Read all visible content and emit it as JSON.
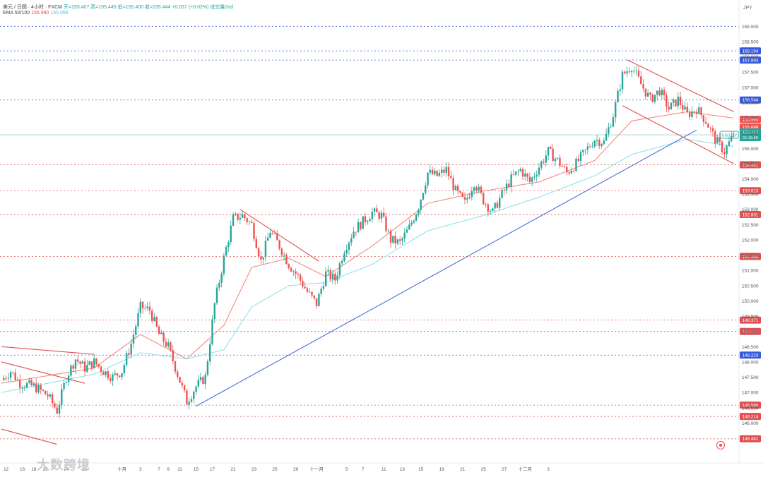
{
  "header": {
    "symbol_line": "美元 / 日圆 · 4小时 · FXCM",
    "ohlc": "开=155.407 高=155.445 低=155.400 收=155.444 +0.037 (+0.02%) 成交量2nd",
    "ma_label": "EMA 50/100",
    "ma1_value": "155.990",
    "ma2_value": "155.056"
  },
  "currency_label": "JPY",
  "watermark": "大数跨境",
  "colors": {
    "up": "#26a69a",
    "down": "#ef5350",
    "ema_fast": "#f28b82",
    "ema_slow": "#8ee4ea",
    "trendline": "#4a6fd6",
    "channel": "#e05050",
    "level_red": "#e05050",
    "level_blue": "#3a5bd9"
  },
  "chart_data": {
    "type": "candlestick",
    "title": "",
    "ylim": [
      145.2,
      159.4
    ],
    "y_ticks": [
      "159.000",
      "158.500",
      "158.000",
      "157.500",
      "157.000",
      "156.500",
      "156.000",
      "155.500",
      "155.000",
      "154.500",
      "154.000",
      "153.500",
      "153.000",
      "152.500",
      "152.000",
      "151.500",
      "151.000",
      "150.500",
      "150.000",
      "149.500",
      "149.000",
      "148.500",
      "148.000",
      "147.500",
      "147.000",
      "146.500",
      "146.000"
    ],
    "x_ticks": [
      "12",
      "16",
      "18",
      "20",
      "24",
      "26",
      "十月",
      "3",
      "7",
      "9",
      "11",
      "15",
      "17",
      "21",
      "23",
      "25",
      "29",
      "十一月",
      "5",
      "7",
      "11",
      "13",
      "15",
      "19",
      "21",
      "25",
      "27",
      "十二月",
      "3"
    ],
    "price_levels": [
      {
        "label": "158.194",
        "value": 158.194,
        "color": "blue"
      },
      {
        "label": "157.893",
        "value": 157.893,
        "color": "blue"
      },
      {
        "label": "156.584",
        "value": 156.584,
        "color": "blue"
      },
      {
        "label": "154.462",
        "value": 154.462,
        "color": "red"
      },
      {
        "label": "153.613",
        "value": 153.613,
        "color": "red"
      },
      {
        "label": "152.831",
        "value": 152.831,
        "color": "red"
      },
      {
        "label": "151.458",
        "value": 151.458,
        "color": "red"
      },
      {
        "label": "149.371",
        "value": 149.371,
        "color": "red"
      },
      {
        "label": "149.000",
        "value": 149.0,
        "color": "red"
      },
      {
        "label": "148.224",
        "value": 148.224,
        "color": "blue"
      },
      {
        "label": "146.585",
        "value": 146.585,
        "color": "red"
      },
      {
        "label": "146.214",
        "value": 146.214,
        "color": "red"
      },
      {
        "label": "145.481",
        "value": 145.481,
        "color": "red"
      }
    ],
    "current_price": {
      "symbol": "USDJPY",
      "price": "155.444",
      "countdown": "01:16:48"
    },
    "ema_badges": [
      {
        "label": "155.990",
        "color": "red"
      },
      {
        "label": "155.699",
        "color": "red"
      },
      {
        "label": "155.056",
        "color": "teal"
      }
    ],
    "anchors": [
      [
        0,
        147.4
      ],
      [
        4,
        147.7
      ],
      [
        8,
        147.3
      ],
      [
        14,
        147.2
      ],
      [
        20,
        146.9
      ],
      [
        24,
        146.4
      ],
      [
        28,
        147.5
      ],
      [
        32,
        148.1
      ],
      [
        36,
        147.8
      ],
      [
        40,
        148.0
      ],
      [
        44,
        147.7
      ],
      [
        48,
        147.5
      ],
      [
        52,
        147.7
      ],
      [
        56,
        148.6
      ],
      [
        60,
        149.8
      ],
      [
        64,
        149.7
      ],
      [
        68,
        148.9
      ],
      [
        72,
        148.5
      ],
      [
        76,
        147.6
      ],
      [
        80,
        146.7
      ],
      [
        84,
        147.2
      ],
      [
        88,
        147.5
      ],
      [
        92,
        149.9
      ],
      [
        96,
        151.4
      ],
      [
        100,
        152.7
      ],
      [
        104,
        152.8
      ],
      [
        108,
        152.5
      ],
      [
        112,
        151.3
      ],
      [
        116,
        152.3
      ],
      [
        120,
        151.8
      ],
      [
        124,
        151.2
      ],
      [
        128,
        150.8
      ],
      [
        132,
        150.3
      ],
      [
        136,
        149.9
      ],
      [
        140,
        150.9
      ],
      [
        144,
        150.7
      ],
      [
        148,
        151.7
      ],
      [
        152,
        152.3
      ],
      [
        156,
        152.6
      ],
      [
        160,
        152.9
      ],
      [
        164,
        152.8
      ],
      [
        168,
        152.0
      ],
      [
        172,
        151.9
      ],
      [
        176,
        152.4
      ],
      [
        180,
        153.1
      ],
      [
        184,
        154.2
      ],
      [
        188,
        154.1
      ],
      [
        192,
        154.3
      ],
      [
        196,
        153.6
      ],
      [
        200,
        153.2
      ],
      [
        204,
        153.9
      ],
      [
        208,
        153.3
      ],
      [
        212,
        152.9
      ],
      [
        216,
        153.5
      ],
      [
        220,
        154.0
      ],
      [
        224,
        154.3
      ],
      [
        228,
        153.9
      ],
      [
        232,
        154.4
      ],
      [
        236,
        154.9
      ],
      [
        240,
        154.6
      ],
      [
        244,
        154.2
      ],
      [
        248,
        154.5
      ],
      [
        252,
        154.9
      ],
      [
        256,
        155.3
      ],
      [
        260,
        155.2
      ],
      [
        264,
        156.1
      ],
      [
        268,
        157.4
      ],
      [
        272,
        157.7
      ],
      [
        276,
        157.1
      ],
      [
        280,
        156.6
      ],
      [
        284,
        156.9
      ],
      [
        288,
        156.3
      ],
      [
        292,
        156.6
      ],
      [
        296,
        156.1
      ],
      [
        300,
        156.3
      ],
      [
        304,
        155.9
      ],
      [
        308,
        155.3
      ],
      [
        312,
        154.9
      ],
      [
        316,
        155.444
      ]
    ],
    "ema_fast": [
      [
        0,
        147.3
      ],
      [
        40,
        147.8
      ],
      [
        60,
        148.9
      ],
      [
        80,
        148.1
      ],
      [
        96,
        149.2
      ],
      [
        108,
        151.1
      ],
      [
        124,
        151.4
      ],
      [
        140,
        150.8
      ],
      [
        160,
        151.8
      ],
      [
        184,
        153.2
      ],
      [
        208,
        153.6
      ],
      [
        232,
        153.9
      ],
      [
        256,
        154.6
      ],
      [
        272,
        155.9
      ],
      [
        296,
        156.2
      ],
      [
        316,
        155.99
      ]
    ],
    "ema_slow": [
      [
        0,
        147.0
      ],
      [
        40,
        147.6
      ],
      [
        60,
        148.3
      ],
      [
        80,
        148.1
      ],
      [
        96,
        148.4
      ],
      [
        108,
        149.8
      ],
      [
        124,
        150.5
      ],
      [
        140,
        150.6
      ],
      [
        160,
        151.2
      ],
      [
        184,
        152.3
      ],
      [
        208,
        152.8
      ],
      [
        232,
        153.4
      ],
      [
        256,
        154.1
      ],
      [
        272,
        154.8
      ],
      [
        296,
        155.3
      ],
      [
        316,
        155.056
      ]
    ],
    "trend_lines": [
      {
        "kind": "support",
        "from": [
          84,
          146.55
        ],
        "to": [
          300,
          155.6
        ]
      },
      {
        "kind": "channel",
        "from": [
          0,
          148.5
        ],
        "to": [
          40,
          148.25
        ]
      },
      {
        "kind": "channel",
        "from": [
          0,
          148.0
        ],
        "to": [
          36,
          147.3
        ]
      },
      {
        "kind": "channel",
        "from": [
          0,
          145.8
        ],
        "to": [
          24,
          145.3
        ]
      },
      {
        "kind": "channel",
        "from": [
          103,
          153.0
        ],
        "to": [
          137,
          151.3
        ]
      },
      {
        "kind": "channel",
        "from": [
          270,
          157.9
        ],
        "to": [
          316,
          156.2
        ]
      },
      {
        "kind": "channel",
        "from": [
          268,
          156.4
        ],
        "to": [
          316,
          154.5
        ]
      }
    ],
    "x_tick_index": [
      2,
      9,
      14,
      19,
      28,
      36,
      52,
      60,
      68,
      72,
      77,
      84,
      91,
      100,
      109,
      118,
      127,
      136,
      149,
      156,
      165,
      173,
      181,
      190,
      199,
      208,
      217,
      226,
      236
    ]
  }
}
